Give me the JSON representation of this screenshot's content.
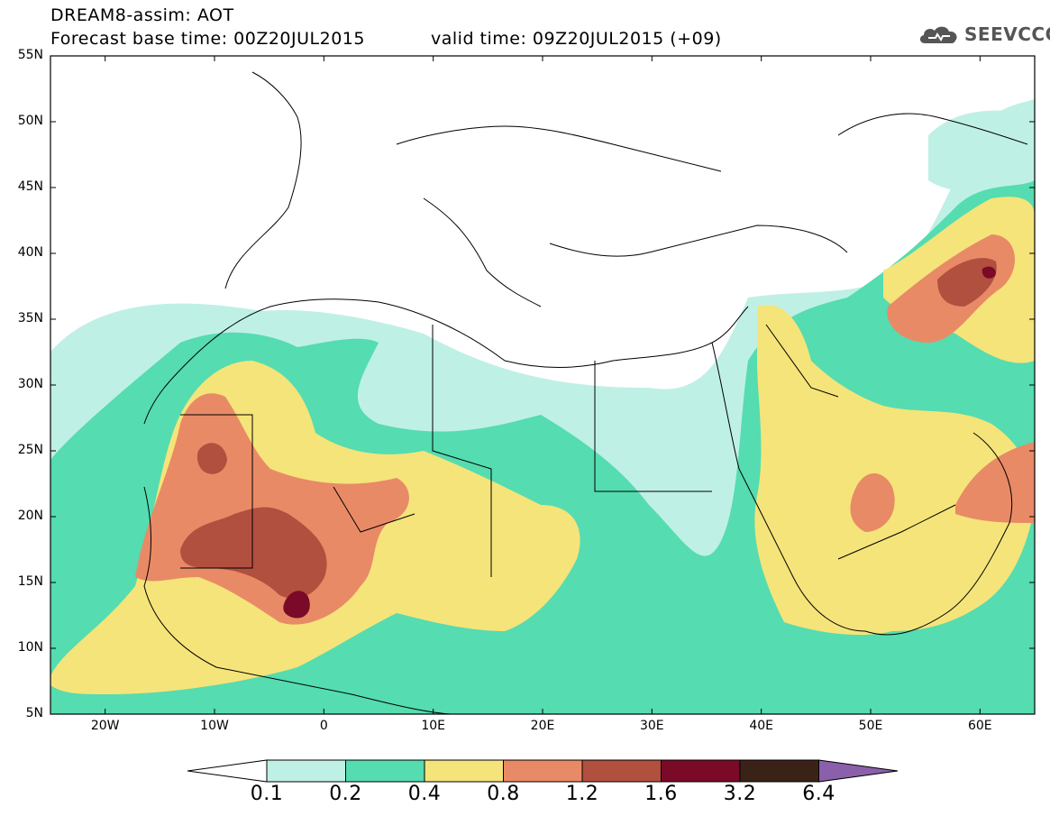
{
  "header": {
    "title": "DREAM8-assim: AOT",
    "base_time": "Forecast base time: 00Z20JUL2015",
    "valid_time": "valid time: 09Z20JUL2015 (+09)",
    "logo_text": "SEEVCCC"
  },
  "map": {
    "lat_labels": [
      "55N",
      "50N",
      "45N",
      "40N",
      "35N",
      "30N",
      "25N",
      "20N",
      "15N",
      "10N",
      "5N"
    ],
    "lon_labels": [
      "20W",
      "10W",
      "0",
      "10E",
      "20E",
      "30E",
      "40E",
      "50E",
      "60E"
    ],
    "lat_range": [
      5,
      55
    ],
    "lon_range": [
      -25,
      65
    ]
  },
  "legend": {
    "thresholds": [
      "0.1",
      "0.2",
      "0.4",
      "0.8",
      "1.2",
      "1.6",
      "3.2",
      "6.4"
    ],
    "colors": [
      "#ffffff",
      "#bff0e6",
      "#55dcb0",
      "#f5e47a",
      "#e98a66",
      "#b2503f",
      "#7a0a28",
      "#3a2316",
      "#8a60aa"
    ]
  }
}
